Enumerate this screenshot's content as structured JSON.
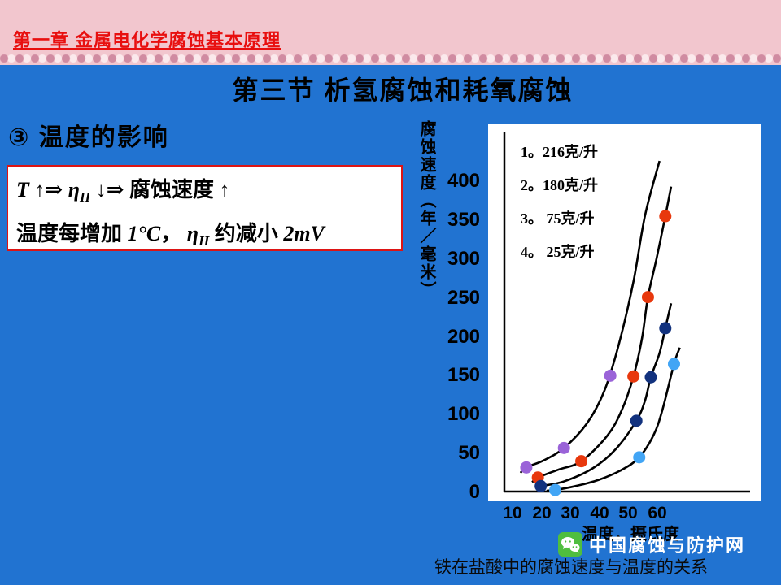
{
  "header": {
    "chapter": "第一章  金属电化学腐蚀基本原理"
  },
  "title": "第三节  析氢腐蚀和耗氧腐蚀",
  "subtitle": "③  温度的影响",
  "formula": {
    "l1a": "T ",
    "l1b": "↑⇒ ",
    "l1c": "η",
    "l1d": "H",
    "l1e": " ↓⇒ 腐蚀速度 ",
    "l1f": "↑",
    "l2a": "温度每增加 ",
    "l2b": "1°C",
    "l2c": "， ",
    "l2d": "η",
    "l2e": "H",
    "l2f": " 约减小 ",
    "l2g": "2mV"
  },
  "caption": "铁在盐酸中的腐蚀速度与温度的关系",
  "watermark": {
    "label": "中国腐蚀与防护网",
    "icon": "wechat-icon",
    "icon_color": "#4fbe3f"
  },
  "chart_data": {
    "type": "line",
    "title": "铁在盐酸中的腐蚀速度与温度的关系",
    "xlabel": "温度，摄氏度",
    "ylabel": "腐蚀速度（年／毫米）",
    "xlim": [
      10,
      70
    ],
    "ylim": [
      0,
      430
    ],
    "x_ticks": [
      10,
      20,
      30,
      40,
      50,
      60
    ],
    "y_ticks": [
      0,
      50,
      100,
      150,
      200,
      250,
      300,
      350,
      400
    ],
    "x_tick_labels": [
      "10",
      "20",
      "30",
      "40",
      "50",
      "60"
    ],
    "y_tick_labels": [
      "400",
      "350",
      "300",
      "250",
      "200",
      "150",
      "100",
      "50",
      "0"
    ],
    "grid": false,
    "legend_position": "top-left",
    "legend": [
      "1。216克/升",
      "2。180克/升",
      "3。 75克/升",
      "4。 25克/升"
    ],
    "series": [
      {
        "name": "216克/升",
        "line_color": "#000000",
        "point_color": "#9a63d8",
        "points": [
          [
            17,
            31
          ],
          [
            30,
            56
          ],
          [
            46,
            149
          ]
        ],
        "curve": [
          [
            15,
            24
          ],
          [
            17,
            31
          ],
          [
            23,
            40
          ],
          [
            30,
            56
          ],
          [
            38,
            88
          ],
          [
            44,
            130
          ],
          [
            49,
            190
          ],
          [
            54,
            270
          ],
          [
            58,
            355
          ],
          [
            63,
            425
          ]
        ]
      },
      {
        "name": "180克/升",
        "line_color": "#000000",
        "point_color": "#e8380d",
        "points": [
          [
            21,
            18
          ],
          [
            36,
            39
          ],
          [
            54,
            148
          ],
          [
            59,
            250
          ],
          [
            65,
            354
          ]
        ],
        "curve": [
          [
            19,
            12
          ],
          [
            21,
            18
          ],
          [
            28,
            28
          ],
          [
            36,
            39
          ],
          [
            45,
            72
          ],
          [
            50,
            105
          ],
          [
            54,
            148
          ],
          [
            57,
            198
          ],
          [
            59,
            250
          ],
          [
            62,
            300
          ],
          [
            65,
            354
          ],
          [
            67,
            392
          ]
        ]
      },
      {
        "name": "75克/升",
        "line_color": "#000000",
        "point_color": "#12327e",
        "points": [
          [
            22,
            7
          ],
          [
            55,
            91
          ],
          [
            60,
            147
          ],
          [
            65,
            210
          ]
        ],
        "curve": [
          [
            20,
            5
          ],
          [
            22,
            7
          ],
          [
            30,
            13
          ],
          [
            40,
            30
          ],
          [
            48,
            55
          ],
          [
            55,
            91
          ],
          [
            58,
            117
          ],
          [
            60,
            147
          ],
          [
            63,
            178
          ],
          [
            65,
            210
          ],
          [
            67,
            242
          ]
        ]
      },
      {
        "name": "25克/升",
        "line_color": "#000000",
        "point_color": "#42a5f5",
        "points": [
          [
            27,
            2
          ],
          [
            56,
            44
          ],
          [
            68,
            164
          ]
        ],
        "curve": [
          [
            24,
            1
          ],
          [
            27,
            2
          ],
          [
            34,
            7
          ],
          [
            42,
            15
          ],
          [
            50,
            28
          ],
          [
            56,
            44
          ],
          [
            61,
            73
          ],
          [
            64,
            105
          ],
          [
            68,
            164
          ],
          [
            70,
            185
          ]
        ]
      }
    ]
  }
}
